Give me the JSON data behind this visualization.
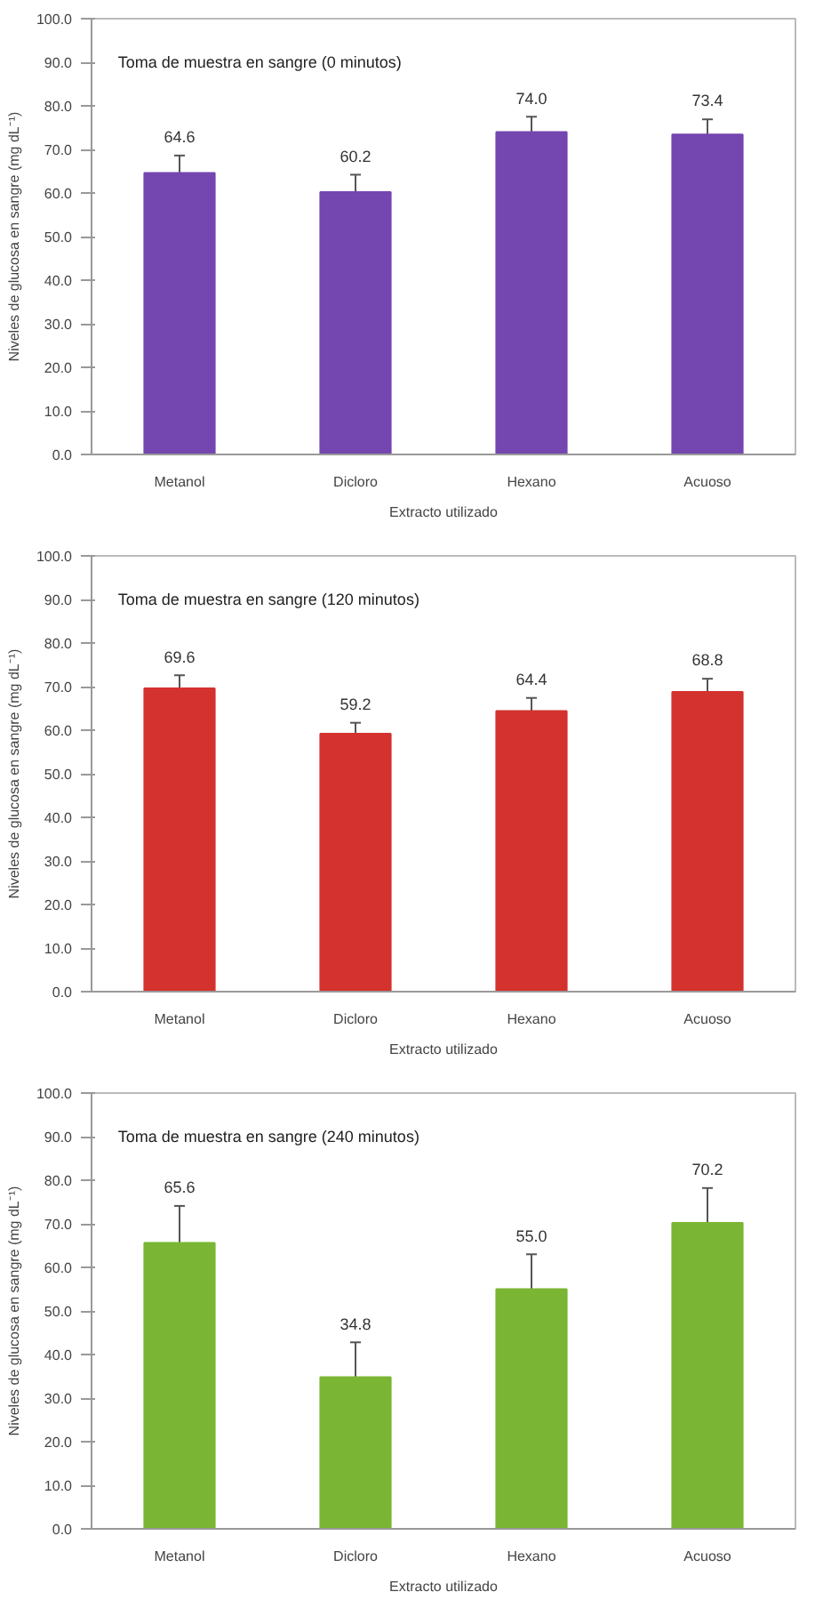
{
  "chart_data": [
    {
      "type": "bar",
      "title": "Toma de muestra en sangre (0 minutos)",
      "xlabel": "Extracto utilizado",
      "ylabel": "Niveles de glucosa en sangre (mg dL⁻¹)",
      "categories": [
        "Metanol",
        "Dicloro",
        "Hexano",
        "Acuoso"
      ],
      "values": [
        64.6,
        60.2,
        74.0,
        73.4
      ],
      "errors": [
        4,
        4,
        3.5,
        3.5
      ],
      "color": "#7446b0",
      "value_labels": [
        "64.6",
        "60.2",
        "74.0",
        "73.4"
      ],
      "ylim": [
        0,
        100
      ],
      "yticks": [
        {
          "value": 0,
          "label": "0.0"
        },
        {
          "value": 10,
          "label": "10.0"
        },
        {
          "value": 20,
          "label": "20.0"
        },
        {
          "value": 30,
          "label": "30.0"
        },
        {
          "value": 40,
          "label": "40.0"
        },
        {
          "value": 50,
          "label": "50.0"
        },
        {
          "value": 60,
          "label": "60.0"
        },
        {
          "value": 70,
          "label": "70.0"
        },
        {
          "value": 80,
          "label": "80.0"
        },
        {
          "value": 90,
          "label": "90.0"
        },
        {
          "value": 100,
          "label": "100.0"
        }
      ]
    },
    {
      "type": "bar",
      "title": "Toma de muestra en sangre (120 minutos)",
      "xlabel": "Extracto utilizado",
      "ylabel": "Niveles de glucosa en sangre (mg dL⁻¹)",
      "categories": [
        "Metanol",
        "Dicloro",
        "Hexano",
        "Acuoso"
      ],
      "values": [
        69.6,
        59.2,
        64.4,
        68.8
      ],
      "errors": [
        3,
        2.5,
        3,
        3
      ],
      "color": "#d4322e",
      "value_labels": [
        "69.6",
        "59.2",
        "64.4",
        "68.8"
      ],
      "ylim": [
        0,
        100
      ],
      "yticks": [
        {
          "value": 0,
          "label": "0.0"
        },
        {
          "value": 10,
          "label": "10.0"
        },
        {
          "value": 20,
          "label": "20.0"
        },
        {
          "value": 30,
          "label": "30.0"
        },
        {
          "value": 40,
          "label": "40.0"
        },
        {
          "value": 50,
          "label": "50.0"
        },
        {
          "value": 60,
          "label": "60.0"
        },
        {
          "value": 70,
          "label": "70.0"
        },
        {
          "value": 80,
          "label": "80.0"
        },
        {
          "value": 90,
          "label": "90.0"
        },
        {
          "value": 100,
          "label": "100.0"
        }
      ]
    },
    {
      "type": "bar",
      "title": "Toma de muestra en sangre (240 minutos)",
      "xlabel": "Extracto utilizado",
      "ylabel": "Niveles de glucosa en sangre (mg dL⁻¹)",
      "categories": [
        "Metanol",
        "Dicloro",
        "Hexano",
        "Acuoso"
      ],
      "values": [
        65.6,
        34.8,
        55.0,
        70.2
      ],
      "errors": [
        8.5,
        8,
        8,
        8
      ],
      "color": "#7ab534",
      "value_labels": [
        "65.6",
        "34.8",
        "55.0",
        "70.2"
      ],
      "ylim": [
        0,
        100
      ],
      "yticks": [
        {
          "value": 0,
          "label": "0.0"
        },
        {
          "value": 10,
          "label": "10.0"
        },
        {
          "value": 20,
          "label": "20.0"
        },
        {
          "value": 30,
          "label": "30.0"
        },
        {
          "value": 40,
          "label": "40.0"
        },
        {
          "value": 50,
          "label": "50.0"
        },
        {
          "value": 60,
          "label": "60.0"
        },
        {
          "value": 70,
          "label": "70.0"
        },
        {
          "value": 80,
          "label": "80.0"
        },
        {
          "value": 90,
          "label": "90.0"
        },
        {
          "value": 100,
          "label": "100.0"
        }
      ]
    }
  ]
}
